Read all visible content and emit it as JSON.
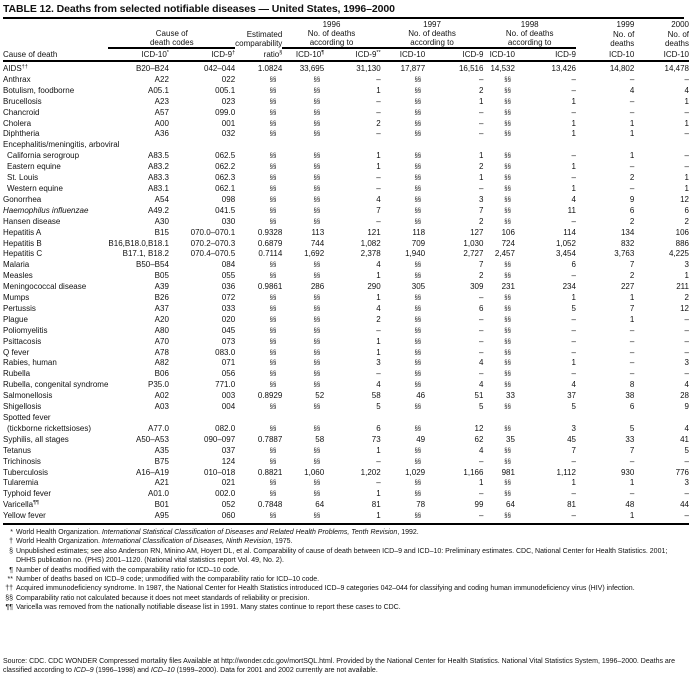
{
  "title": "TABLE 12. Deaths from selected notifiable diseases — United States, 1996–2000",
  "header": {
    "years": [
      "1996",
      "1997",
      "1998",
      "1999",
      "2000"
    ],
    "codes_group": [
      "Cause of",
      "death codes"
    ],
    "ratio_group": [
      "Estimated",
      "comparability"
    ],
    "according_group": [
      "No. of deaths",
      "according to"
    ],
    "deaths_group": [
      "No. of",
      "deaths"
    ],
    "columns": [
      {
        "t": "Cause of death",
        "s": ""
      },
      {
        "t": "ICD-10",
        "s": "*"
      },
      {
        "t": "ICD-9",
        "s": "†"
      },
      {
        "t": "ratio",
        "s": "§"
      },
      {
        "t": "ICD-10",
        "s": "¶"
      },
      {
        "t": "ICD-9",
        "s": "**"
      },
      {
        "t": "ICD-10",
        "s": ""
      },
      {
        "t": "ICD-9",
        "s": ""
      },
      {
        "t": "ICD-10",
        "s": ""
      },
      {
        "t": "ICD-9",
        "s": ""
      },
      {
        "t": "ICD-10",
        "s": ""
      },
      {
        "t": "ICD-10",
        "s": ""
      }
    ]
  },
  "rows": [
    {
      "name": "AIDS",
      "sup": "††",
      "v": [
        "B20–B24",
        "042–044",
        "1.0824",
        "33,695",
        "31,130",
        "17,877",
        "16,516",
        "14,532",
        "13,426",
        "14,802",
        "14,478"
      ]
    },
    {
      "name": "Anthrax",
      "v": [
        "A22",
        "022",
        "§§",
        "§§",
        "–",
        "§§",
        "–",
        "§§",
        "–",
        "–",
        "–"
      ]
    },
    {
      "name": "Botulism, foodborne",
      "v": [
        "A05.1",
        "005.1",
        "§§",
        "§§",
        "1",
        "§§",
        "2",
        "§§",
        "–",
        "4",
        "4"
      ]
    },
    {
      "name": "Brucellosis",
      "v": [
        "A23",
        "023",
        "§§",
        "§§",
        "–",
        "§§",
        "1",
        "§§",
        "1",
        "–",
        "1"
      ]
    },
    {
      "name": "Chancroid",
      "v": [
        "A57",
        "099.0",
        "§§",
        "§§",
        "–",
        "§§",
        "–",
        "§§",
        "–",
        "–",
        "–"
      ]
    },
    {
      "name": "Cholera",
      "v": [
        "A00",
        "001",
        "§§",
        "§§",
        "2",
        "§§",
        "–",
        "§§",
        "1",
        "1",
        "1"
      ]
    },
    {
      "name": "Diphtheria",
      "v": [
        "A36",
        "032",
        "§§",
        "§§",
        "–",
        "§§",
        "–",
        "§§",
        "1",
        "1",
        "–"
      ]
    },
    {
      "name": "Encephalitis/meningitis, arboviral",
      "group": true
    },
    {
      "name": "California serogroup",
      "indent": true,
      "v": [
        "A83.5",
        "062.5",
        "§§",
        "§§",
        "1",
        "§§",
        "1",
        "§§",
        "–",
        "1",
        "–"
      ]
    },
    {
      "name": "Eastern equine",
      "indent": true,
      "v": [
        "A83.2",
        "062.2",
        "§§",
        "§§",
        "1",
        "§§",
        "2",
        "§§",
        "1",
        "–",
        "–"
      ]
    },
    {
      "name": "St. Louis",
      "indent": true,
      "v": [
        "A83.3",
        "062.3",
        "§§",
        "§§",
        "–",
        "§§",
        "1",
        "§§",
        "–",
        "2",
        "1"
      ]
    },
    {
      "name": "Western equine",
      "indent": true,
      "v": [
        "A83.1",
        "062.1",
        "§§",
        "§§",
        "–",
        "§§",
        "–",
        "§§",
        "1",
        "–",
        "1"
      ]
    },
    {
      "name": "Gonorrhea",
      "v": [
        "A54",
        "098",
        "§§",
        "§§",
        "4",
        "§§",
        "3",
        "§§",
        "4",
        "9",
        "12"
      ]
    },
    {
      "name": "Haemophilus influenzae",
      "italic": true,
      "v": [
        "A49.2",
        "041.5",
        "§§",
        "§§",
        "7",
        "§§",
        "7",
        "§§",
        "11",
        "6",
        "6"
      ]
    },
    {
      "name": "Hansen disease",
      "v": [
        "A30",
        "030",
        "§§",
        "§§",
        "–",
        "§§",
        "2",
        "§§",
        "–",
        "2",
        "2"
      ]
    },
    {
      "name": "Hepatitis A",
      "v": [
        "B15",
        "070.0–070.1",
        "0.9328",
        "113",
        "121",
        "118",
        "127",
        "106",
        "114",
        "134",
        "106"
      ]
    },
    {
      "name": "Hepatitis B",
      "v": [
        "B16,B18.0,B18.1",
        "070.2–070.3",
        "0.6879",
        "744",
        "1,082",
        "709",
        "1,030",
        "724",
        "1,052",
        "832",
        "886"
      ]
    },
    {
      "name": "Hepatitis C",
      "v": [
        "B17.1, B18.2",
        "070.4–070.5",
        "0.7114",
        "1,692",
        "2,378",
        "1,940",
        "2,727",
        "2,457",
        "3,454",
        "3,763",
        "4,225"
      ]
    },
    {
      "name": "Malaria",
      "v": [
        "B50–B54",
        "084",
        "§§",
        "§§",
        "4",
        "§§",
        "7",
        "§§",
        "6",
        "7",
        "3"
      ]
    },
    {
      "name": "Measles",
      "v": [
        "B05",
        "055",
        "§§",
        "§§",
        "1",
        "§§",
        "2",
        "§§",
        "–",
        "2",
        "1"
      ]
    },
    {
      "name": "Meningococcal disease",
      "v": [
        "A39",
        "036",
        "0.9861",
        "286",
        "290",
        "305",
        "309",
        "231",
        "234",
        "227",
        "211"
      ]
    },
    {
      "name": "Mumps",
      "v": [
        "B26",
        "072",
        "§§",
        "§§",
        "1",
        "§§",
        "–",
        "§§",
        "1",
        "1",
        "2"
      ]
    },
    {
      "name": "Pertussis",
      "v": [
        "A37",
        "033",
        "§§",
        "§§",
        "4",
        "§§",
        "6",
        "§§",
        "5",
        "7",
        "12"
      ]
    },
    {
      "name": "Plague",
      "v": [
        "A20",
        "020",
        "§§",
        "§§",
        "2",
        "§§",
        "–",
        "§§",
        "–",
        "1",
        "–"
      ]
    },
    {
      "name": "Poliomyelitis",
      "v": [
        "A80",
        "045",
        "§§",
        "§§",
        "–",
        "§§",
        "–",
        "§§",
        "–",
        "–",
        "–"
      ]
    },
    {
      "name": "Psittacosis",
      "v": [
        "A70",
        "073",
        "§§",
        "§§",
        "1",
        "§§",
        "–",
        "§§",
        "–",
        "–",
        "–"
      ]
    },
    {
      "name": "Q fever",
      "v": [
        "A78",
        "083.0",
        "§§",
        "§§",
        "1",
        "§§",
        "–",
        "§§",
        "–",
        "–",
        "–"
      ]
    },
    {
      "name": "Rabies, human",
      "v": [
        "A82",
        "071",
        "§§",
        "§§",
        "3",
        "§§",
        "4",
        "§§",
        "1",
        "–",
        "3"
      ]
    },
    {
      "name": "Rubella",
      "v": [
        "B06",
        "056",
        "§§",
        "§§",
        "–",
        "§§",
        "–",
        "§§",
        "–",
        "–",
        "–"
      ]
    },
    {
      "name": "Rubella, congenital syndrome",
      "v": [
        "P35.0",
        "771.0",
        "§§",
        "§§",
        "4",
        "§§",
        "4",
        "§§",
        "4",
        "8",
        "4"
      ]
    },
    {
      "name": "Salmonellosis",
      "v": [
        "A02",
        "003",
        "0.8929",
        "52",
        "58",
        "46",
        "51",
        "33",
        "37",
        "38",
        "28"
      ]
    },
    {
      "name": "Shigellosis",
      "v": [
        "A03",
        "004",
        "§§",
        "§§",
        "5",
        "§§",
        "5",
        "§§",
        "5",
        "6",
        "9"
      ]
    },
    {
      "name": "Spotted fever",
      "group": true
    },
    {
      "name": "(tickborne rickettsioses)",
      "indent": true,
      "v": [
        "A77.0",
        "082.0",
        "§§",
        "§§",
        "6",
        "§§",
        "12",
        "§§",
        "3",
        "5",
        "4"
      ]
    },
    {
      "name": "Syphilis, all stages",
      "v": [
        "A50–A53",
        "090–097",
        "0.7887",
        "58",
        "73",
        "49",
        "62",
        "35",
        "45",
        "33",
        "41"
      ]
    },
    {
      "name": "Tetanus",
      "v": [
        "A35",
        "037",
        "§§",
        "§§",
        "1",
        "§§",
        "4",
        "§§",
        "7",
        "7",
        "5"
      ]
    },
    {
      "name": "Trichinosis",
      "v": [
        "B75",
        "124",
        "§§",
        "§§",
        "–",
        "§§",
        "–",
        "§§",
        "–",
        "–",
        "–"
      ]
    },
    {
      "name": "Tuberculosis",
      "v": [
        "A16–A19",
        "010–018",
        "0.8821",
        "1,060",
        "1,202",
        "1,029",
        "1,166",
        "981",
        "1,112",
        "930",
        "776"
      ]
    },
    {
      "name": "Tularemia",
      "v": [
        "A21",
        "021",
        "§§",
        "§§",
        "–",
        "§§",
        "1",
        "§§",
        "1",
        "1",
        "3"
      ]
    },
    {
      "name": "Typhoid fever",
      "v": [
        "A01.0",
        "002.0",
        "§§",
        "§§",
        "1",
        "§§",
        "–",
        "§§",
        "–",
        "–",
        "–"
      ]
    },
    {
      "name": "Varicella",
      "sup": "¶¶",
      "v": [
        "B01",
        "052",
        "0.7848",
        "64",
        "81",
        "78",
        "99",
        "64",
        "81",
        "48",
        "44"
      ]
    },
    {
      "name": "Yellow fever",
      "v": [
        "A95",
        "060",
        "§§",
        "§§",
        "1",
        "§§",
        "–",
        "§§",
        "–",
        "1",
        "–"
      ]
    }
  ],
  "footnotes": [
    {
      "mark": "*",
      "parts": [
        {
          "t": "World Health Organization. "
        },
        {
          "t": "International Statistical Classification of Diseases and Related Health Problems, Tenth Revision",
          "i": true
        },
        {
          "t": ", 1992."
        }
      ]
    },
    {
      "mark": "†",
      "parts": [
        {
          "t": "World Health Organization. "
        },
        {
          "t": "International Classification of Diseases, Ninth Revision",
          "i": true
        },
        {
          "t": ", 1975."
        }
      ]
    },
    {
      "mark": "§",
      "parts": [
        {
          "t": "Unpublished estimates; see also Anderson RN, Minino AM, Hoyert DL, et al. Comparability of cause of death between ICD–9 and ICD–10: Preliminary estimates. CDC, National Center for Health Statistics. 2001; DHHS publication no. (PHS) 2001–1120. (National vital statistics report Vol. 49, No. 2)."
        }
      ]
    },
    {
      "mark": "¶",
      "parts": [
        {
          "t": "Number of deaths modified with the comparability ratio for ICD–10 code."
        }
      ]
    },
    {
      "mark": "**",
      "parts": [
        {
          "t": "Number of deaths based on ICD–9 code; unmodified with the comparability ratio for ICD–10 code."
        }
      ]
    },
    {
      "mark": "††",
      "parts": [
        {
          "t": "Acquired immunodeficiency syndrome. In 1987, the National Center for Health Statistics introduced ICD–9 categories 042–044 for classifying and coding human immunodeficiency virus (HIV) infection."
        }
      ]
    },
    {
      "mark": "§§",
      "parts": [
        {
          "t": "Comparability ratio not calculated because it does not meet standards of reliability or precision."
        }
      ]
    },
    {
      "mark": "¶¶",
      "parts": [
        {
          "t": "Varicella was removed from the nationally notifiable disease list in 1991. Many states continue to report these cases to CDC."
        }
      ]
    }
  ],
  "source": [
    {
      "t": "Source: CDC. CDC WONDER Compressed mortality files Available at http://wonder.cdc.gov/mortSQL.html. Provided by the National Center for Health Statistics. National Vital Statistics System, 1996–2000. Deaths are classified according to "
    },
    {
      "t": "ICD–9",
      "i": true
    },
    {
      "t": " (1996–1998) and "
    },
    {
      "t": "ICD–10",
      "i": true
    },
    {
      "t": " (1999–2000). Data for 2001 and 2002 currently are not available."
    }
  ]
}
